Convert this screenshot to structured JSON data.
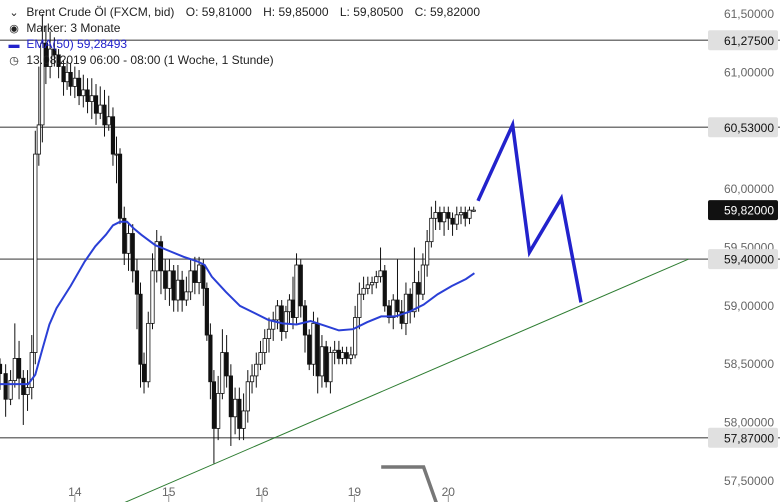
{
  "header": {
    "instrument": "Brent Crude Öl (FXCM, bid)",
    "open": "O: 59,81000",
    "high": "H: 59,85000",
    "low": "L: 59,80500",
    "close": "C: 59,82000",
    "marker": "Marker: 3 Monate",
    "ema": "EMA(50) 59,28493",
    "timestamp": "13.08.2019 06:00 - 08:00   (1 Woche, 1 Stunde)"
  },
  "colors": {
    "candle": "#111111",
    "ema": "#2a3fd6",
    "projection": "#2222cc",
    "trendline": "#2e7d32",
    "level": "#777777",
    "level_label_bg": "#e0e0e0",
    "current_label_bg": "#111111",
    "axis_text": "#666666"
  },
  "chart_data": {
    "type": "candlestick",
    "y_axis": {
      "ylim": [
        57.32,
        61.62
      ],
      "tick_values": [
        57.5,
        58.0,
        58.5,
        59.0,
        59.5,
        60.0,
        60.5,
        61.0,
        61.5
      ],
      "tick_labels": [
        "57,50000",
        "58,00000",
        "58,50000",
        "59,00000",
        "59,50000",
        "60,00000",
        "60,50000",
        "61,00000",
        "61,50000"
      ],
      "position": "right"
    },
    "x_axis": {
      "xlim": [
        0,
        1
      ],
      "tick_positions": [
        0.106,
        0.239,
        0.371,
        0.502,
        0.635
      ],
      "tick_labels": [
        "14",
        "15",
        "16",
        "19",
        "20"
      ]
    },
    "levels": [
      {
        "value": 61.275,
        "label": "61,27500"
      },
      {
        "value": 60.53,
        "label": "60,53000"
      },
      {
        "value": 59.4,
        "label": "59,40000"
      },
      {
        "value": 57.87,
        "label": "57,87000"
      }
    ],
    "current_price": {
      "value": 59.82,
      "label": "59,82000"
    },
    "ema_points": [
      [
        0.0,
        58.33
      ],
      [
        0.04,
        58.33
      ],
      [
        0.05,
        58.41
      ],
      [
        0.06,
        58.63
      ],
      [
        0.07,
        58.84
      ],
      [
        0.08,
        58.98
      ],
      [
        0.1,
        59.17
      ],
      [
        0.12,
        59.38
      ],
      [
        0.135,
        59.51
      ],
      [
        0.15,
        59.61
      ],
      [
        0.16,
        59.69
      ],
      [
        0.17,
        59.72
      ],
      [
        0.18,
        59.72
      ],
      [
        0.19,
        59.66
      ],
      [
        0.2,
        59.61
      ],
      [
        0.22,
        59.52
      ],
      [
        0.24,
        59.47
      ],
      [
        0.26,
        59.42
      ],
      [
        0.28,
        59.38
      ],
      [
        0.29,
        59.35
      ],
      [
        0.3,
        59.25
      ],
      [
        0.32,
        59.12
      ],
      [
        0.34,
        59.0
      ],
      [
        0.36,
        58.94
      ],
      [
        0.38,
        58.88
      ],
      [
        0.4,
        58.85
      ],
      [
        0.42,
        58.84
      ],
      [
        0.44,
        58.87
      ],
      [
        0.46,
        58.83
      ],
      [
        0.48,
        58.79
      ],
      [
        0.5,
        58.8
      ],
      [
        0.52,
        58.86
      ],
      [
        0.54,
        58.91
      ],
      [
        0.56,
        58.91
      ],
      [
        0.58,
        58.95
      ],
      [
        0.6,
        59.01
      ],
      [
        0.62,
        59.1
      ],
      [
        0.64,
        59.17
      ],
      [
        0.66,
        59.23
      ],
      [
        0.672,
        59.28
      ]
    ],
    "candles": [
      [
        0.0,
        58.5,
        58.42,
        58.55,
        58.28
      ],
      [
        0.008,
        58.42,
        58.2,
        58.5,
        58.05
      ],
      [
        0.015,
        58.2,
        58.36,
        58.45,
        58.15
      ],
      [
        0.021,
        58.36,
        58.55,
        58.85,
        58.3
      ],
      [
        0.027,
        58.55,
        58.38,
        58.7,
        58.2
      ],
      [
        0.033,
        58.38,
        58.24,
        58.45,
        57.98
      ],
      [
        0.039,
        58.24,
        58.3,
        58.45,
        58.1
      ],
      [
        0.045,
        58.3,
        58.6,
        58.75,
        58.2
      ],
      [
        0.05,
        58.6,
        60.3,
        60.5,
        58.5
      ],
      [
        0.055,
        60.3,
        60.55,
        61.05,
        60.2
      ],
      [
        0.06,
        60.55,
        61.25,
        61.5,
        60.4
      ],
      [
        0.065,
        61.25,
        61.05,
        61.4,
        60.9
      ],
      [
        0.071,
        61.05,
        61.2,
        61.35,
        60.95
      ],
      [
        0.077,
        61.2,
        61.15,
        61.3,
        61.05
      ],
      [
        0.083,
        61.15,
        61.05,
        61.2,
        60.95
      ],
      [
        0.09,
        61.05,
        60.92,
        61.1,
        60.8
      ],
      [
        0.095,
        60.92,
        61.0,
        61.1,
        60.85
      ],
      [
        0.1,
        61.0,
        60.88,
        61.08,
        60.8
      ],
      [
        0.106,
        60.88,
        60.95,
        61.05,
        60.78
      ],
      [
        0.112,
        60.95,
        60.8,
        61.02,
        60.72
      ],
      [
        0.118,
        60.8,
        60.85,
        60.98,
        60.7
      ],
      [
        0.124,
        60.85,
        60.75,
        60.95,
        60.65
      ],
      [
        0.13,
        60.75,
        60.8,
        60.95,
        60.6
      ],
      [
        0.136,
        60.8,
        60.65,
        60.9,
        60.55
      ],
      [
        0.142,
        60.65,
        60.72,
        60.88,
        60.6
      ],
      [
        0.148,
        60.72,
        60.55,
        60.85,
        60.45
      ],
      [
        0.154,
        60.55,
        60.62,
        60.8,
        60.5
      ],
      [
        0.16,
        60.62,
        60.3,
        60.7,
        60.2
      ],
      [
        0.165,
        60.3,
        60.3,
        60.45,
        60.05
      ],
      [
        0.17,
        60.3,
        59.75,
        60.35,
        59.7
      ],
      [
        0.176,
        59.75,
        59.45,
        59.85,
        59.35
      ],
      [
        0.182,
        59.45,
        59.62,
        59.7,
        59.3
      ],
      [
        0.188,
        59.62,
        59.3,
        59.7,
        59.2
      ],
      [
        0.194,
        59.3,
        59.1,
        59.4,
        58.8
      ],
      [
        0.199,
        59.1,
        58.5,
        59.2,
        58.3
      ],
      [
        0.204,
        58.5,
        58.35,
        58.6,
        58.25
      ],
      [
        0.21,
        58.35,
        58.85,
        58.95,
        58.3
      ],
      [
        0.216,
        58.85,
        59.3,
        59.45,
        58.8
      ],
      [
        0.222,
        59.3,
        59.55,
        59.65,
        59.2
      ],
      [
        0.228,
        59.55,
        59.3,
        59.6,
        59.1
      ],
      [
        0.234,
        59.3,
        59.15,
        59.4,
        59.05
      ],
      [
        0.24,
        59.15,
        59.3,
        59.4,
        59.0
      ],
      [
        0.246,
        59.3,
        59.05,
        59.35,
        58.95
      ],
      [
        0.252,
        59.05,
        59.22,
        59.35,
        58.95
      ],
      [
        0.258,
        59.22,
        59.05,
        59.3,
        58.95
      ],
      [
        0.264,
        59.05,
        59.12,
        59.25,
        59.0
      ],
      [
        0.27,
        59.12,
        59.3,
        59.4,
        59.05
      ],
      [
        0.276,
        59.3,
        59.2,
        59.42,
        59.1
      ],
      [
        0.282,
        59.2,
        59.35,
        59.42,
        59.1
      ],
      [
        0.288,
        59.35,
        59.15,
        59.4,
        59.0
      ],
      [
        0.293,
        59.15,
        58.75,
        59.2,
        58.7
      ],
      [
        0.298,
        58.75,
        58.35,
        58.85,
        58.2
      ],
      [
        0.303,
        58.35,
        57.95,
        58.45,
        57.65
      ],
      [
        0.309,
        57.95,
        58.25,
        58.4,
        57.85
      ],
      [
        0.315,
        58.25,
        58.6,
        58.8,
        58.2
      ],
      [
        0.321,
        58.6,
        58.4,
        58.75,
        58.3
      ],
      [
        0.327,
        58.4,
        58.05,
        58.5,
        57.8
      ],
      [
        0.333,
        58.05,
        58.2,
        58.3,
        57.9
      ],
      [
        0.339,
        58.2,
        57.95,
        58.3,
        57.85
      ],
      [
        0.345,
        57.95,
        58.1,
        58.25,
        57.85
      ],
      [
        0.351,
        58.1,
        58.35,
        58.45,
        58.0
      ],
      [
        0.357,
        58.35,
        58.4,
        58.5,
        58.25
      ],
      [
        0.363,
        58.4,
        58.5,
        58.6,
        58.3
      ],
      [
        0.369,
        58.5,
        58.6,
        58.7,
        58.45
      ],
      [
        0.375,
        58.6,
        58.72,
        58.8,
        58.5
      ],
      [
        0.381,
        58.72,
        58.8,
        58.9,
        58.6
      ],
      [
        0.387,
        58.8,
        58.88,
        58.95,
        58.7
      ],
      [
        0.393,
        58.88,
        59.0,
        59.05,
        58.8
      ],
      [
        0.399,
        59.0,
        58.78,
        59.05,
        58.7
      ],
      [
        0.405,
        58.78,
        58.95,
        59.0,
        58.72
      ],
      [
        0.41,
        58.95,
        59.05,
        59.1,
        58.85
      ],
      [
        0.415,
        59.05,
        58.9,
        59.25,
        58.8
      ],
      [
        0.42,
        58.9,
        59.35,
        59.45,
        58.85
      ],
      [
        0.426,
        59.35,
        59.0,
        59.4,
        58.9
      ],
      [
        0.432,
        59.0,
        58.75,
        59.05,
        58.6
      ],
      [
        0.438,
        58.75,
        58.5,
        58.8,
        58.45
      ],
      [
        0.444,
        58.5,
        58.85,
        58.95,
        58.4
      ],
      [
        0.45,
        58.85,
        58.4,
        58.9,
        58.25
      ],
      [
        0.456,
        58.4,
        58.65,
        58.75,
        58.3
      ],
      [
        0.462,
        58.65,
        58.35,
        58.7,
        58.3
      ],
      [
        0.468,
        58.35,
        58.6,
        58.65,
        58.25
      ],
      [
        0.474,
        58.6,
        58.62,
        58.7,
        58.5
      ],
      [
        0.48,
        58.62,
        58.55,
        58.7,
        58.5
      ],
      [
        0.485,
        58.55,
        58.6,
        58.65,
        58.5
      ],
      [
        0.491,
        58.6,
        58.55,
        58.65,
        58.5
      ],
      [
        0.497,
        58.55,
        58.58,
        58.65,
        58.5
      ],
      [
        0.503,
        58.58,
        58.9,
        59.0,
        58.55
      ],
      [
        0.509,
        58.9,
        59.1,
        59.2,
        58.8
      ],
      [
        0.515,
        59.1,
        59.15,
        59.25,
        59.05
      ],
      [
        0.521,
        59.15,
        59.18,
        59.25,
        59.1
      ],
      [
        0.527,
        59.18,
        59.2,
        59.25,
        59.1
      ],
      [
        0.533,
        59.2,
        59.25,
        59.3,
        59.15
      ],
      [
        0.539,
        59.25,
        59.3,
        59.5,
        59.2
      ],
      [
        0.545,
        59.3,
        59.0,
        59.35,
        58.95
      ],
      [
        0.551,
        59.0,
        58.9,
        59.05,
        58.85
      ],
      [
        0.557,
        58.9,
        59.05,
        59.1,
        58.8
      ],
      [
        0.563,
        59.05,
        58.95,
        59.4,
        58.9
      ],
      [
        0.569,
        58.95,
        58.85,
        59.05,
        58.8
      ],
      [
        0.575,
        58.85,
        59.1,
        59.2,
        58.75
      ],
      [
        0.581,
        59.1,
        58.95,
        59.15,
        58.85
      ],
      [
        0.587,
        58.95,
        59.2,
        59.5,
        58.9
      ],
      [
        0.593,
        59.2,
        59.1,
        59.3,
        58.95
      ],
      [
        0.599,
        59.1,
        59.35,
        59.45,
        59.05
      ],
      [
        0.605,
        59.35,
        59.55,
        59.65,
        59.25
      ],
      [
        0.611,
        59.55,
        59.75,
        59.85,
        59.5
      ],
      [
        0.617,
        59.75,
        59.8,
        59.9,
        59.65
      ],
      [
        0.623,
        59.8,
        59.72,
        59.85,
        59.65
      ],
      [
        0.629,
        59.72,
        59.8,
        59.85,
        59.6
      ],
      [
        0.635,
        59.8,
        59.75,
        59.85,
        59.65
      ],
      [
        0.641,
        59.75,
        59.7,
        59.8,
        59.6
      ],
      [
        0.647,
        59.7,
        59.78,
        59.85,
        59.65
      ],
      [
        0.653,
        59.78,
        59.8,
        59.85,
        59.7
      ],
      [
        0.659,
        59.8,
        59.75,
        59.85,
        59.68
      ],
      [
        0.665,
        59.75,
        59.82,
        59.85,
        59.7
      ],
      [
        0.671,
        59.81,
        59.82,
        59.85,
        59.805
      ]
    ],
    "trendline": [
      [
        0.14,
        57.22
      ],
      [
        0.975,
        59.4
      ]
    ],
    "projection_path": [
      [
        0.677,
        59.9
      ],
      [
        0.726,
        60.55
      ],
      [
        0.75,
        59.46
      ],
      [
        0.795,
        59.92
      ],
      [
        0.823,
        59.03
      ]
    ],
    "projection_fragment": [
      [
        0.54,
        57.62
      ],
      [
        0.6,
        57.62
      ],
      [
        0.62,
        57.28
      ]
    ]
  }
}
